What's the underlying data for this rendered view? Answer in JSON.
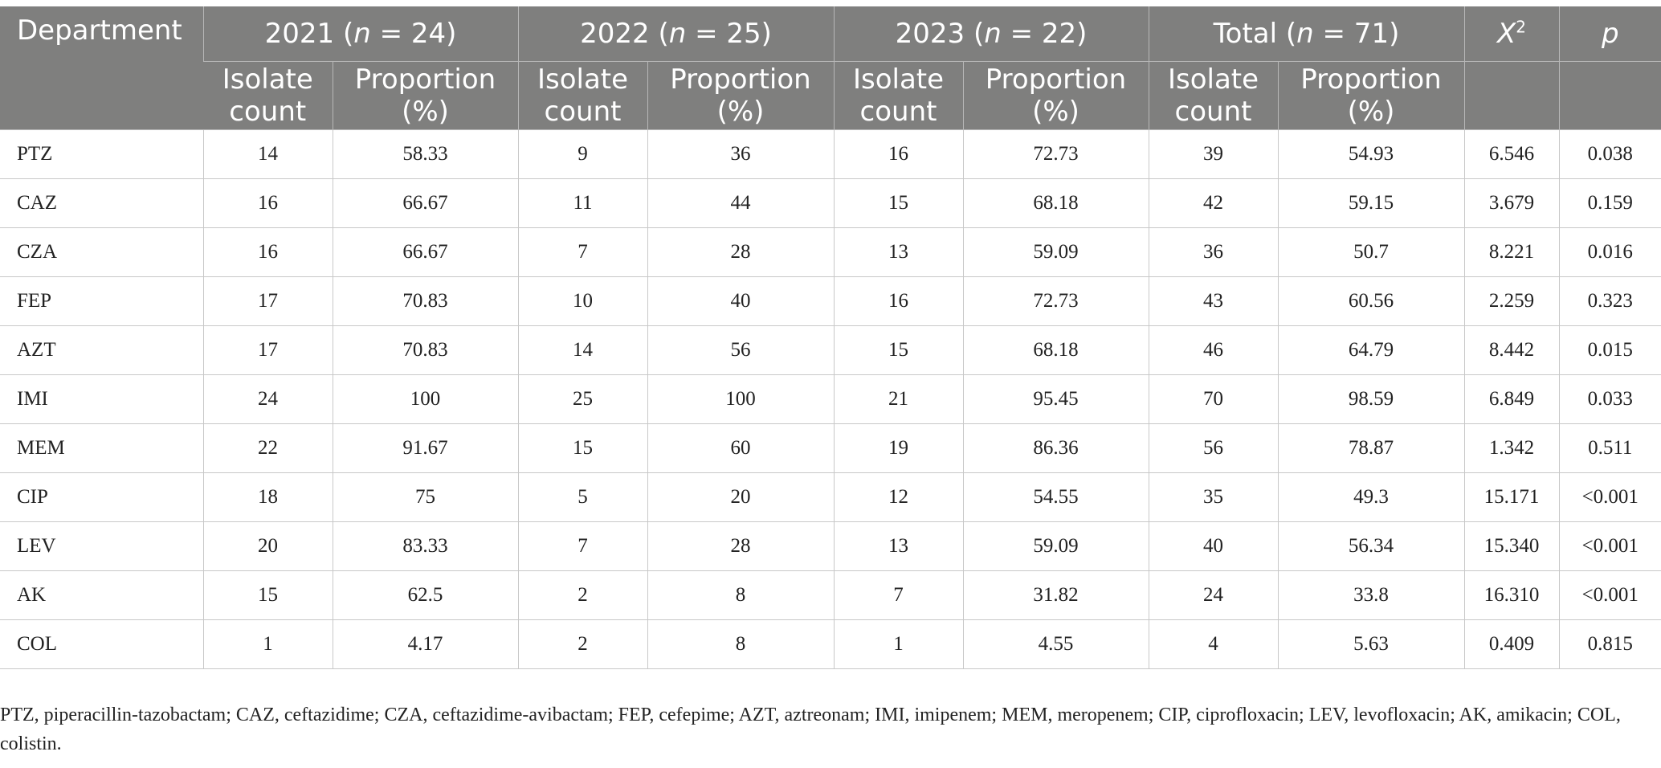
{
  "header": {
    "department": "Department",
    "groups": [
      {
        "year": "2021",
        "n_open": "(",
        "n_sym": "n",
        "n_eq": " = 24)"
      },
      {
        "year": "2022",
        "n_open": "(",
        "n_sym": "n",
        "n_eq": " = 25)"
      },
      {
        "year": "2023",
        "n_open": "(",
        "n_sym": "n",
        "n_eq": " = 22)"
      },
      {
        "year": "Total",
        "n_open": "(",
        "n_sym": "n",
        "n_eq": " = 71)"
      }
    ],
    "chi": {
      "base": "X",
      "sup": "2"
    },
    "p": "p",
    "sub_count_1": "Isolate",
    "sub_count_2": "count",
    "sub_prop_1": "Proportion",
    "sub_prop_2": "(%)"
  },
  "rows": [
    {
      "drug": "PTZ",
      "c2021": "14",
      "p2021": "58.33",
      "c2022": "9",
      "p2022": "36",
      "c2023": "16",
      "p2023": "72.73",
      "ct": "39",
      "pt": "54.93",
      "chi": "6.546",
      "pval": "0.038"
    },
    {
      "drug": "CAZ",
      "c2021": "16",
      "p2021": "66.67",
      "c2022": "11",
      "p2022": "44",
      "c2023": "15",
      "p2023": "68.18",
      "ct": "42",
      "pt": "59.15",
      "chi": "3.679",
      "pval": "0.159"
    },
    {
      "drug": "CZA",
      "c2021": "16",
      "p2021": "66.67",
      "c2022": "7",
      "p2022": "28",
      "c2023": "13",
      "p2023": "59.09",
      "ct": "36",
      "pt": "50.7",
      "chi": "8.221",
      "pval": "0.016"
    },
    {
      "drug": "FEP",
      "c2021": "17",
      "p2021": "70.83",
      "c2022": "10",
      "p2022": "40",
      "c2023": "16",
      "p2023": "72.73",
      "ct": "43",
      "pt": "60.56",
      "chi": "2.259",
      "pval": "0.323"
    },
    {
      "drug": "AZT",
      "c2021": "17",
      "p2021": "70.83",
      "c2022": "14",
      "p2022": "56",
      "c2023": "15",
      "p2023": "68.18",
      "ct": "46",
      "pt": "64.79",
      "chi": "8.442",
      "pval": "0.015"
    },
    {
      "drug": "IMI",
      "c2021": "24",
      "p2021": "100",
      "c2022": "25",
      "p2022": "100",
      "c2023": "21",
      "p2023": "95.45",
      "ct": "70",
      "pt": "98.59",
      "chi": "6.849",
      "pval": "0.033"
    },
    {
      "drug": "MEM",
      "c2021": "22",
      "p2021": "91.67",
      "c2022": "15",
      "p2022": "60",
      "c2023": "19",
      "p2023": "86.36",
      "ct": "56",
      "pt": "78.87",
      "chi": "1.342",
      "pval": "0.511"
    },
    {
      "drug": "CIP",
      "c2021": "18",
      "p2021": "75",
      "c2022": "5",
      "p2022": "20",
      "c2023": "12",
      "p2023": "54.55",
      "ct": "35",
      "pt": "49.3",
      "chi": "15.171",
      "pval": "<0.001"
    },
    {
      "drug": "LEV",
      "c2021": "20",
      "p2021": "83.33",
      "c2022": "7",
      "p2022": "28",
      "c2023": "13",
      "p2023": "59.09",
      "ct": "40",
      "pt": "56.34",
      "chi": "15.340",
      "pval": "<0.001"
    },
    {
      "drug": "AK",
      "c2021": "15",
      "p2021": "62.5",
      "c2022": "2",
      "p2022": "8",
      "c2023": "7",
      "p2023": "31.82",
      "ct": "24",
      "pt": "33.8",
      "chi": "16.310",
      "pval": "<0.001"
    },
    {
      "drug": "COL",
      "c2021": "1",
      "p2021": "4.17",
      "c2022": "2",
      "p2022": "8",
      "c2023": "1",
      "p2023": "4.55",
      "ct": "4",
      "pt": "5.63",
      "chi": "0.409",
      "pval": "0.815"
    }
  ],
  "footnote": "PTZ, piperacillin-tazobactam; CAZ, ceftazidime; CZA, ceftazidime-avibactam; FEP, cefepime; AZT, aztreonam; IMI, imipenem; MEM, meropenem; CIP, ciprofloxacin; LEV, levofloxacin; AK, amikacin; COL, colistin."
}
